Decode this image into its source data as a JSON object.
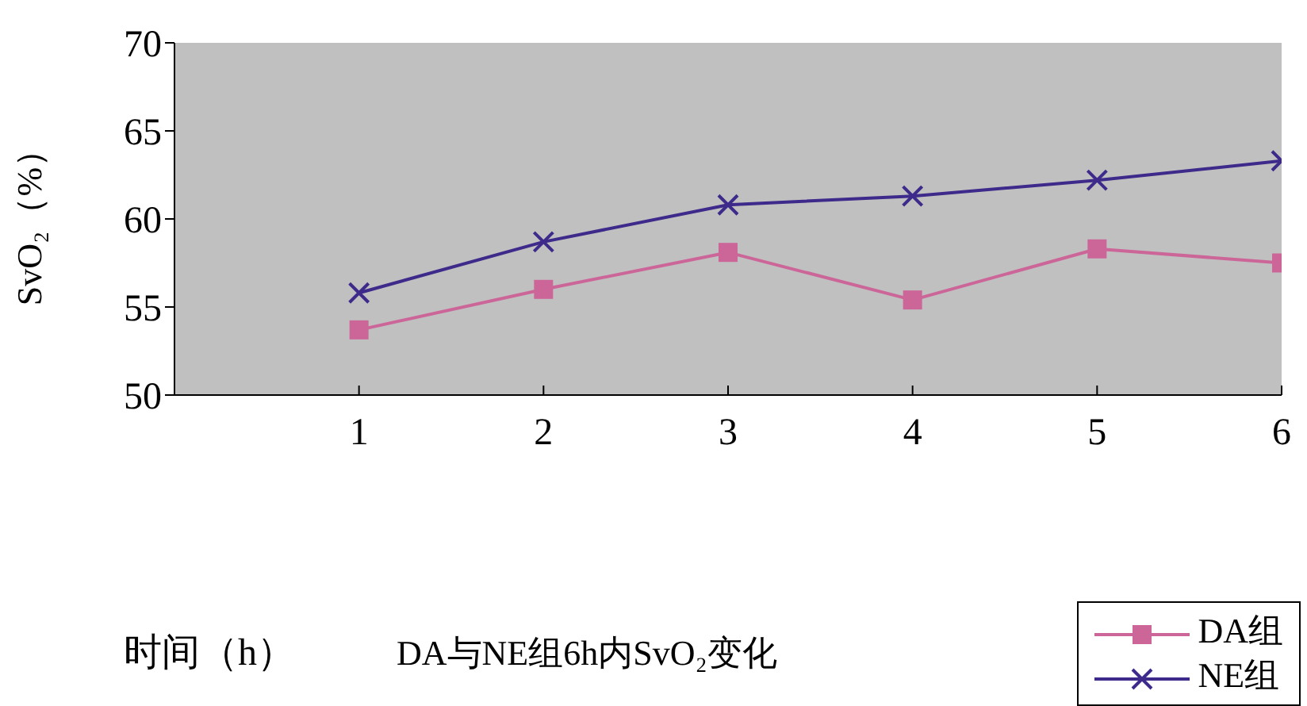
{
  "chart_data": {
    "type": "line",
    "title": "DA与NE组6h内SvO₂变化",
    "xlabel": "时间（h）",
    "ylabel": "SvO₂（%）",
    "x": [
      1,
      2,
      3,
      4,
      5,
      6
    ],
    "xlim": [
      0,
      6
    ],
    "xticks": [
      1,
      2,
      3,
      4,
      5,
      6
    ],
    "ylim": [
      50,
      70
    ],
    "yticks": [
      50,
      55,
      60,
      65,
      70
    ],
    "grid": false,
    "legend": "bottom right",
    "series": [
      {
        "name": "DA组",
        "color": "#cc6699",
        "marker": "square",
        "values": [
          53.7,
          56.0,
          58.1,
          55.4,
          58.3,
          57.5
        ]
      },
      {
        "name": "NE组",
        "color": "#3d2a8a",
        "marker": "cross",
        "values": [
          55.8,
          58.7,
          60.8,
          61.3,
          62.2,
          63.3
        ]
      }
    ]
  }
}
